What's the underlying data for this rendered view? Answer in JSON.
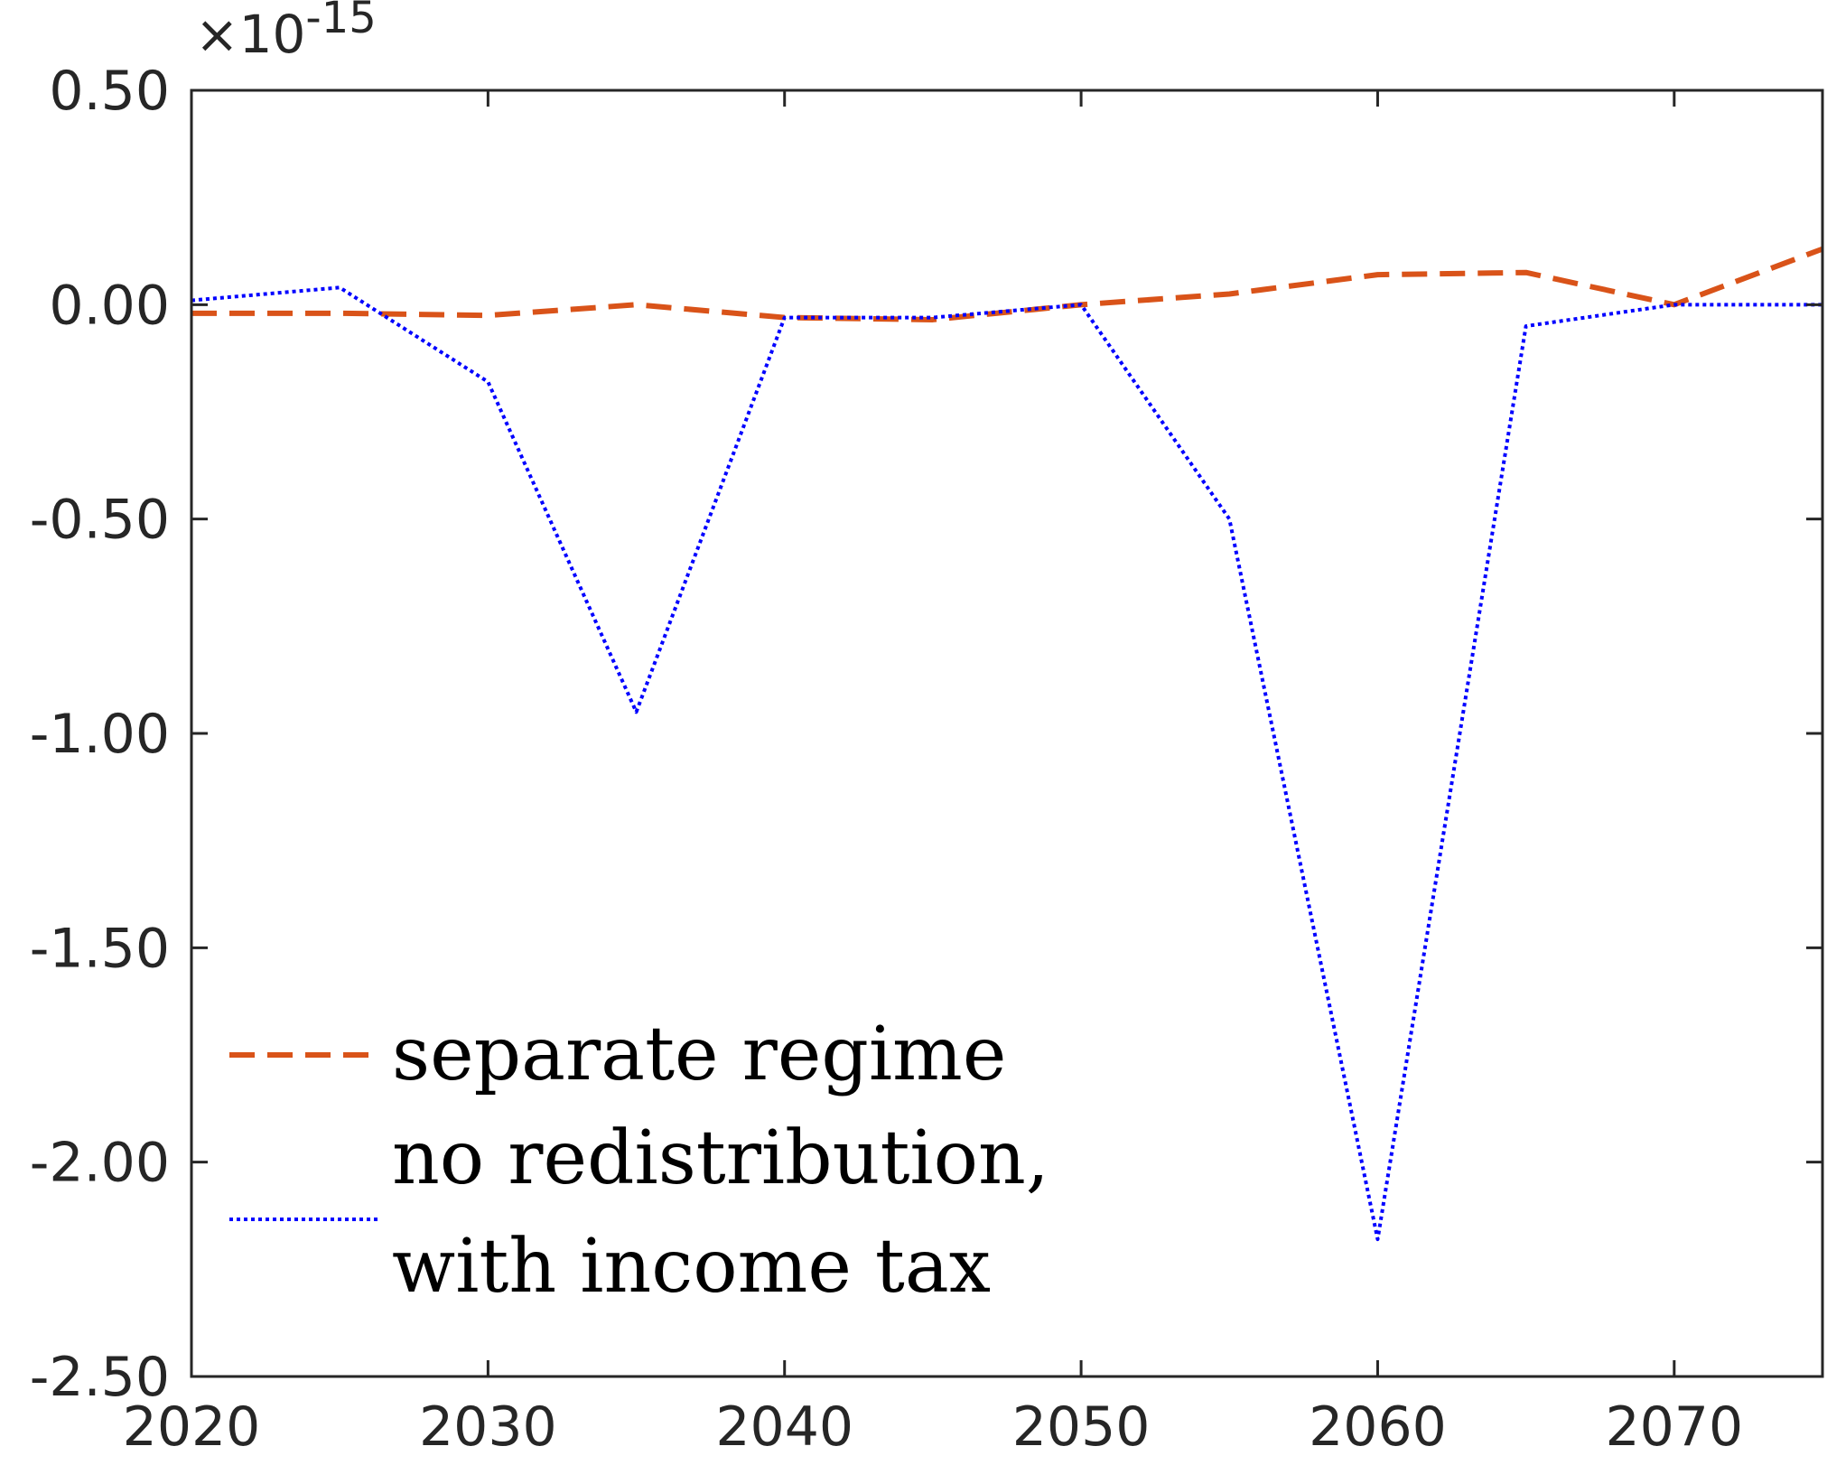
{
  "chart_data": {
    "type": "line",
    "title": "",
    "xlabel": "",
    "ylabel": "",
    "xlim": [
      2020,
      2075
    ],
    "ylim": [
      -2.5,
      0.5
    ],
    "y_exponent_label": "×10-15",
    "y_exponent_base": "×10",
    "y_exponent_power": "-15",
    "x_ticks": [
      2020,
      2030,
      2040,
      2050,
      2060,
      2070
    ],
    "x_tick_labels": [
      "2020",
      "2030",
      "2040",
      "2050",
      "2060",
      "2070"
    ],
    "y_ticks": [
      0.5,
      0,
      -0.5,
      -1,
      -1.5,
      -2,
      -2.5
    ],
    "y_tick_labels": [
      "0.50",
      "0.00",
      "-0.50",
      "-1.00",
      "-1.50",
      "-2.00",
      "-2.50"
    ],
    "grid": false,
    "legend_position": "bottom-left",
    "x": [
      2020,
      2025,
      2030,
      2035,
      2040,
      2045,
      2050,
      2055,
      2060,
      2065,
      2070,
      2075
    ],
    "series": [
      {
        "name": "separate regime",
        "legend_lines": [
          "separate regime"
        ],
        "color": "#D95319",
        "style": "dashed",
        "values": [
          -0.02,
          -0.02,
          -0.025,
          0.0,
          -0.03,
          -0.035,
          0.0,
          0.025,
          0.07,
          0.075,
          0.0,
          0.13
        ]
      },
      {
        "name": "no redistribution, with income tax",
        "legend_lines": [
          "no redistribution,",
          "with income tax"
        ],
        "color": "#0000FF",
        "style": "dotted",
        "values": [
          0.01,
          0.04,
          -0.18,
          -0.95,
          -0.03,
          -0.03,
          0.0,
          -0.5,
          -2.18,
          -0.05,
          0.0,
          0.0
        ]
      }
    ]
  }
}
